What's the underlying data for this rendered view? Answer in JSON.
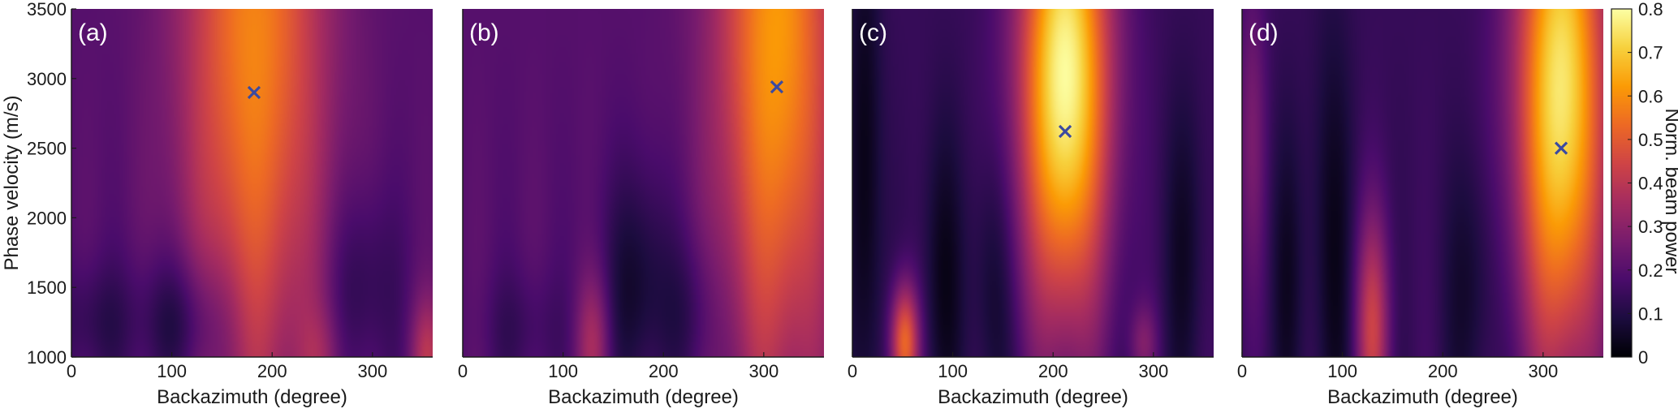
{
  "chart_data": {
    "type": "heatmap",
    "colorbar": {
      "label": "Norm. beam power",
      "min": 0,
      "max": 0.8,
      "ticks": [
        "0",
        "0.1",
        "0.2",
        "0.3",
        "0.4",
        "0.5",
        "0.6",
        "0.7",
        "0.8"
      ],
      "colormap": [
        "#000004",
        "#1c0c3f",
        "#4a0c6b",
        "#781c6d",
        "#a52c60",
        "#cf4446",
        "#ed6925",
        "#fb9b06",
        "#f7d13d",
        "#fcffa4"
      ]
    },
    "marker_color": "#3b4aa0",
    "panels": [
      {
        "label": "(a)",
        "xlabel": "Backazimuth (degree)",
        "ylabel": "Phase velocity (m/s)",
        "xticks": [
          "0",
          "100",
          "200",
          "300"
        ],
        "yticks": [
          "1000",
          "1500",
          "2000",
          "2500",
          "3000",
          "3500"
        ],
        "xlim": [
          0,
          360
        ],
        "ylim": [
          1000,
          3500
        ],
        "peak": {
          "backazimuth": 182,
          "velocity": 2900
        },
        "blobs": [
          {
            "x": 182,
            "y": 3300,
            "sx": 50,
            "sy": 1900,
            "a": 0.38
          },
          {
            "x": 355,
            "y": 1000,
            "sx": 12,
            "sy": 300,
            "a": 0.18
          },
          {
            "x": 250,
            "y": 1000,
            "sx": 15,
            "sy": 250,
            "a": 0.08
          }
        ],
        "background": 0.2,
        "valleys": [
          {
            "x": 110,
            "y": 1250,
            "sx": 35,
            "sy": 350,
            "a": 0.14
          },
          {
            "x": 290,
            "y": 1500,
            "sx": 25,
            "sy": 500,
            "a": 0.1
          },
          {
            "x": 20,
            "y": 1250,
            "sx": 25,
            "sy": 300,
            "a": 0.08
          }
        ]
      },
      {
        "label": "(b)",
        "xlabel": "Backazimuth (degree)",
        "ylabel": "",
        "xticks": [
          "0",
          "100",
          "200",
          "300"
        ],
        "yticks": [],
        "xlim": [
          0,
          360
        ],
        "ylim": [
          1000,
          3500
        ],
        "peak": {
          "backazimuth": 313,
          "velocity": 2940
        },
        "blobs": [
          {
            "x": 313,
            "y": 3300,
            "sx": 42,
            "sy": 1800,
            "a": 0.42
          },
          {
            "x": 130,
            "y": 1100,
            "sx": 12,
            "sy": 350,
            "a": 0.16
          }
        ],
        "background": 0.2,
        "valleys": [
          {
            "x": 175,
            "y": 1500,
            "sx": 25,
            "sy": 600,
            "a": 0.14
          },
          {
            "x": 230,
            "y": 1300,
            "sx": 20,
            "sy": 400,
            "a": 0.08
          },
          {
            "x": 60,
            "y": 1200,
            "sx": 30,
            "sy": 300,
            "a": 0.06
          }
        ]
      },
      {
        "label": "(c)",
        "xlabel": "Backazimuth (degree)",
        "ylabel": "",
        "xticks": [
          "0",
          "100",
          "200",
          "300"
        ],
        "yticks": [],
        "xlim": [
          0,
          360
        ],
        "ylim": [
          1000,
          3500
        ],
        "peak": {
          "backazimuth": 212,
          "velocity": 2620
        },
        "blobs": [
          {
            "x": 212,
            "y": 3000,
            "sx": 32,
            "sy": 1200,
            "a": 0.66
          },
          {
            "x": 52,
            "y": 1100,
            "sx": 10,
            "sy": 300,
            "a": 0.4
          },
          {
            "x": 290,
            "y": 1100,
            "sx": 10,
            "sy": 200,
            "a": 0.12
          }
        ],
        "background": 0.14,
        "valleys": [
          {
            "x": 12,
            "y": 2200,
            "sx": 12,
            "sy": 1500,
            "a": 0.12
          },
          {
            "x": 90,
            "y": 1600,
            "sx": 15,
            "sy": 800,
            "a": 0.1
          },
          {
            "x": 140,
            "y": 1500,
            "sx": 15,
            "sy": 700,
            "a": 0.09
          },
          {
            "x": 330,
            "y": 1800,
            "sx": 15,
            "sy": 800,
            "a": 0.08
          }
        ]
      },
      {
        "label": "(d)",
        "xlabel": "Backazimuth (degree)",
        "ylabel": "",
        "xticks": [
          "0",
          "100",
          "200",
          "300"
        ],
        "yticks": [],
        "xlim": [
          0,
          360
        ],
        "ylim": [
          1000,
          3500
        ],
        "peak": {
          "backazimuth": 318,
          "velocity": 2500
        },
        "blobs": [
          {
            "x": 318,
            "y": 2900,
            "sx": 32,
            "sy": 1400,
            "a": 0.62
          },
          {
            "x": 130,
            "y": 1200,
            "sx": 12,
            "sy": 600,
            "a": 0.28
          },
          {
            "x": 10,
            "y": 2600,
            "sx": 10,
            "sy": 800,
            "a": 0.12
          }
        ],
        "background": 0.14,
        "valleys": [
          {
            "x": 90,
            "y": 1800,
            "sx": 15,
            "sy": 1200,
            "a": 0.1
          },
          {
            "x": 45,
            "y": 1600,
            "sx": 12,
            "sy": 800,
            "a": 0.08
          },
          {
            "x": 230,
            "y": 1500,
            "sx": 20,
            "sy": 700,
            "a": 0.08
          }
        ]
      }
    ]
  }
}
